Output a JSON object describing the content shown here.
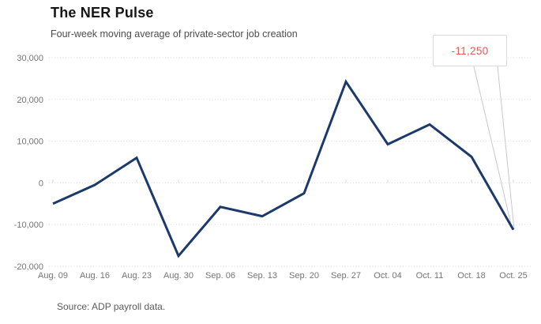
{
  "header": {
    "title": "The NER Pulse",
    "subtitle": "Four-week moving average of private-sector job creation"
  },
  "annotation": {
    "label": "-11,250",
    "category": "Oct. 25",
    "value": -11250
  },
  "source": {
    "label": "Source: ADP payroll data."
  },
  "colors": {
    "line": "#1b3a6b",
    "grid": "#d9d9d9",
    "axis_text": "#757575",
    "annotation_text": "#e05c5c",
    "callout_border": "#d9d9d9",
    "tail": "#c9c9c9"
  },
  "chart_data": {
    "type": "line",
    "title": "The NER Pulse",
    "subtitle": "Four-week moving average of private-sector job creation",
    "xlabel": "",
    "ylabel": "",
    "categories": [
      "Aug. 09",
      "Aug. 16",
      "Aug. 23",
      "Aug. 30",
      "Sep. 06",
      "Sep. 13",
      "Sep. 20",
      "Sep. 27",
      "Oct. 04",
      "Oct. 11",
      "Oct. 18",
      "Oct. 25"
    ],
    "values": [
      -5000,
      -500,
      6000,
      -17500,
      -5750,
      -8000,
      -2500,
      24250,
      9250,
      14000,
      6250,
      -11250
    ],
    "ylim": [
      -20000,
      30000
    ],
    "yticks": [
      {
        "value": 30000,
        "label": "30,000"
      },
      {
        "value": 20000,
        "label": "20,000"
      },
      {
        "value": 10000,
        "label": "10,000"
      },
      {
        "value": 0,
        "label": "0"
      },
      {
        "value": -10000,
        "label": "-10,000"
      },
      {
        "value": -20000,
        "label": "-20,000"
      }
    ],
    "grid": "horizontal-dotted",
    "legend": "none",
    "annotation_on_last_point": "-11,250"
  }
}
